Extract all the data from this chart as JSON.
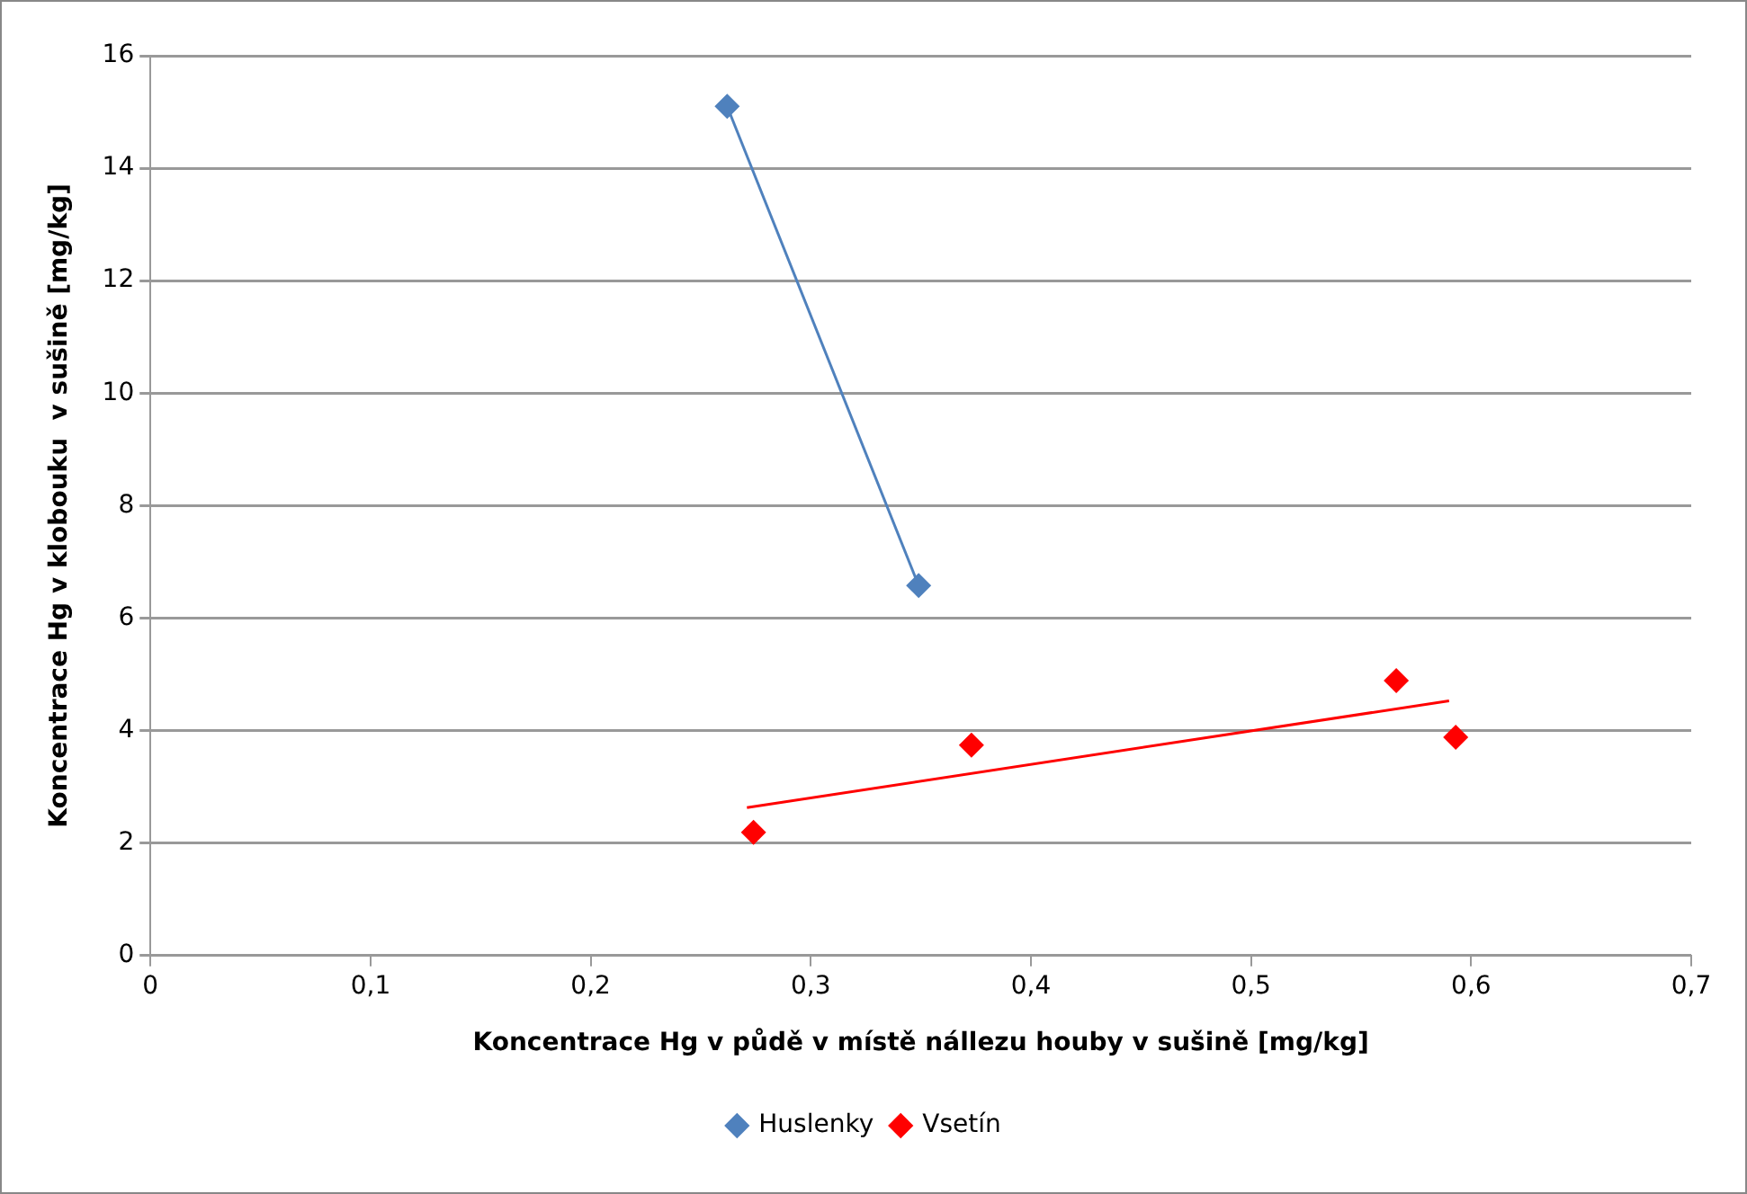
{
  "chart_data": {
    "type": "scatter",
    "xlabel": "Koncentrace Hg v půdě v místě nállezu houby v sušině [mg/kg]",
    "ylabel": "Koncentrace Hg v klobouku  v sušině [mg/kg]",
    "xlim": [
      0,
      0.7
    ],
    "xticks": [
      0,
      {
        "value": 0.1,
        "label": "0,1"
      },
      {
        "value": 0.2,
        "label": "0,2"
      },
      {
        "value": 0.3,
        "label": "0,3"
      },
      {
        "value": 0.4,
        "label": "0,4"
      },
      {
        "value": 0.5,
        "label": "0,5"
      },
      {
        "value": 0.6,
        "label": "0,6"
      },
      {
        "value": 0.7,
        "label": "0,7"
      }
    ],
    "ylim": [
      0,
      16
    ],
    "yticks": [
      0,
      2,
      4,
      6,
      8,
      10,
      12,
      14,
      16
    ],
    "grid": "y",
    "legend": "bottom",
    "marker": "diamond",
    "series": [
      {
        "name": "Huslenky",
        "color": "#4f81bd",
        "x": [
          0.262,
          0.349
        ],
        "values": [
          15.1,
          6.58
        ]
      },
      {
        "name": "Vsetín",
        "color": "#ff0000",
        "x": [
          0.274,
          0.373,
          0.566,
          0.593
        ],
        "values": [
          2.19,
          3.74,
          4.89,
          3.88
        ]
      },
      {
        "type": "line",
        "marker": "none",
        "color": "#4f81bd",
        "x": [
          0.262,
          0.349
        ],
        "values": [
          15.1,
          6.58
        ]
      },
      {
        "type": "line",
        "marker": "none",
        "color": "#ff0000",
        "x": [
          0.271,
          0.59
        ],
        "values": [
          2.63,
          4.53
        ]
      }
    ]
  }
}
